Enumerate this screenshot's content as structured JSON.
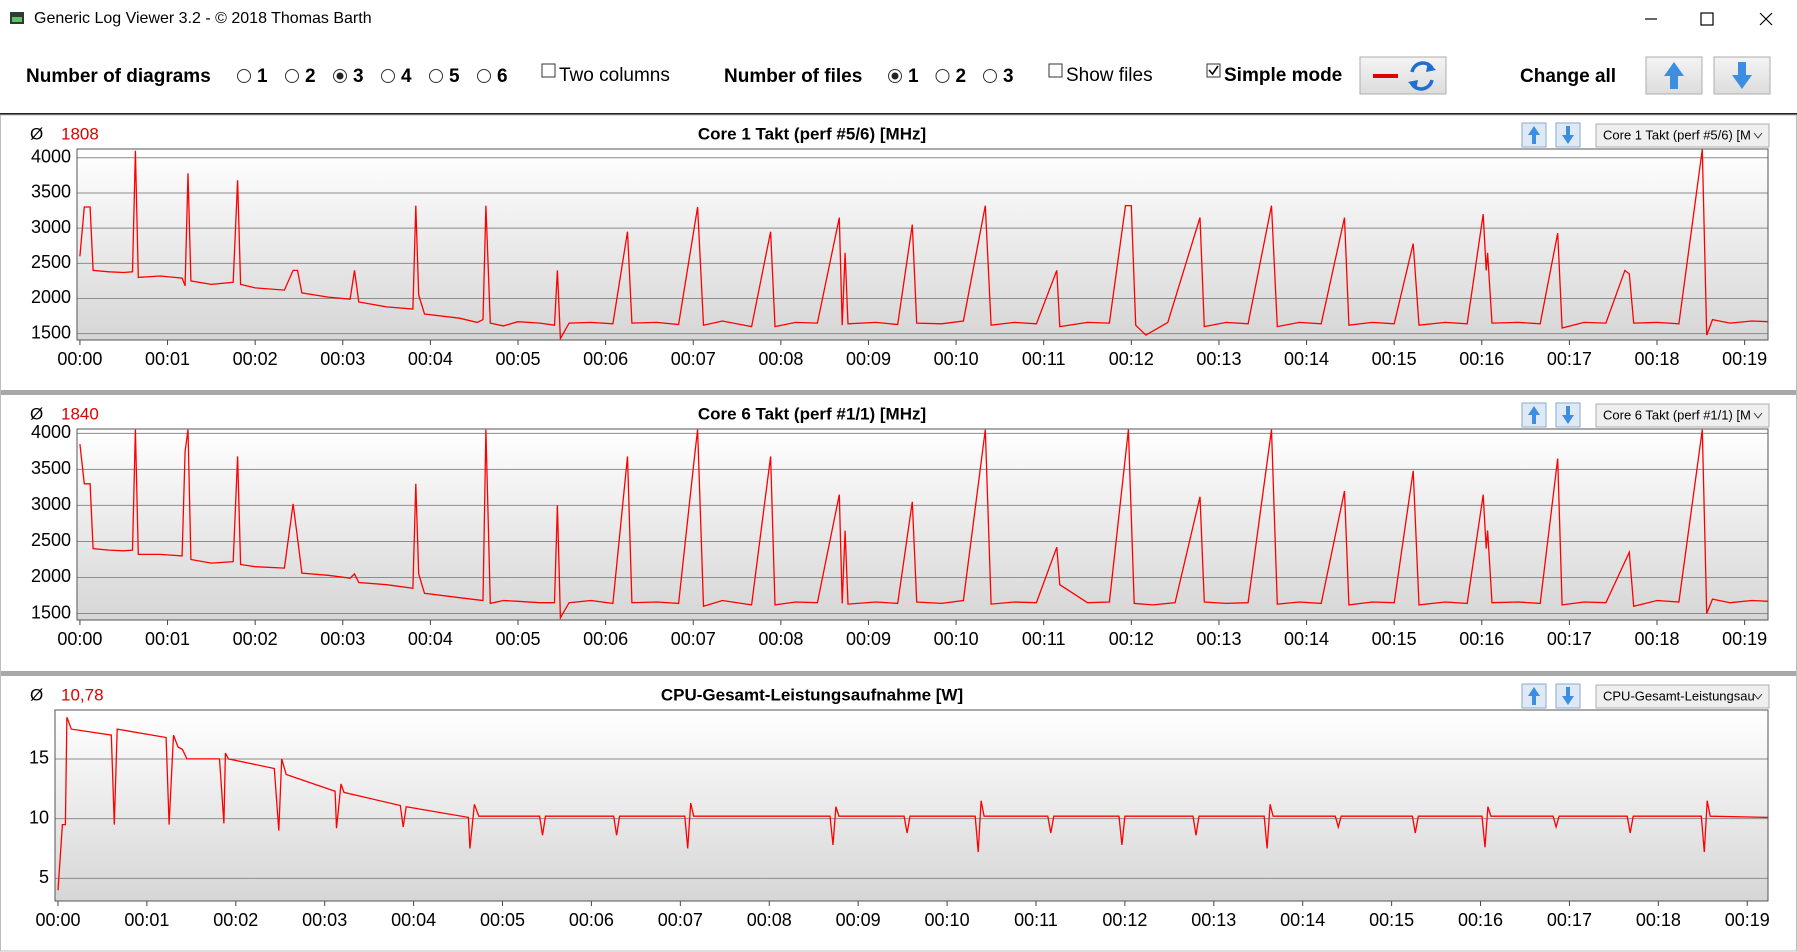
{
  "window": {
    "title": "Generic Log Viewer 3.2 - © 2018 Thomas Barth"
  },
  "toolbar": {
    "diagrams": {
      "label": "Number of diagrams",
      "options": [
        {
          "label": "1",
          "checked": false
        },
        {
          "label": "2",
          "checked": false
        },
        {
          "label": "3",
          "checked": true
        },
        {
          "label": "4",
          "checked": false
        },
        {
          "label": "5",
          "checked": false
        },
        {
          "label": "6",
          "checked": false
        }
      ]
    },
    "two_columns": {
      "label": "Two columns",
      "checked": false
    },
    "files": {
      "label": "Number of files",
      "options": [
        {
          "label": "1",
          "checked": true
        },
        {
          "label": "2",
          "checked": false
        },
        {
          "label": "3",
          "checked": false
        }
      ]
    },
    "show_files": {
      "label": "Show files",
      "checked": false
    },
    "simple_mode": {
      "label": "Simple mode",
      "checked": true
    },
    "change_all": "Change all"
  },
  "chart_data": [
    {
      "type": "line",
      "avg_symbol": "Ø",
      "average": "1808",
      "title": "Core 1 Takt (perf #5/6) [MHz]",
      "selector": "Core 1 Takt (perf #5/6) [M",
      "color": "#ff0000",
      "grid": true,
      "xlim": [
        -2,
        1156
      ],
      "ylim": [
        1410,
        4125
      ],
      "yticks": [
        1500,
        2000,
        2500,
        3000,
        3500,
        4000
      ],
      "xticks": [
        {
          "value": 0,
          "label": "00:00"
        },
        {
          "value": 60,
          "label": "00:01"
        },
        {
          "value": 120,
          "label": "00:02"
        },
        {
          "value": 180,
          "label": "00:03"
        },
        {
          "value": 240,
          "label": "00:04"
        },
        {
          "value": 300,
          "label": "00:05"
        },
        {
          "value": 360,
          "label": "00:06"
        },
        {
          "value": 420,
          "label": "00:07"
        },
        {
          "value": 480,
          "label": "00:08"
        },
        {
          "value": 540,
          "label": "00:09"
        },
        {
          "value": 600,
          "label": "00:10"
        },
        {
          "value": 660,
          "label": "00:11"
        },
        {
          "value": 720,
          "label": "00:12"
        },
        {
          "value": 780,
          "label": "00:13"
        },
        {
          "value": 840,
          "label": "00:14"
        },
        {
          "value": 900,
          "label": "00:15"
        },
        {
          "value": 960,
          "label": "00:16"
        },
        {
          "value": 1020,
          "label": "00:17"
        },
        {
          "value": 1080,
          "label": "00:18"
        },
        {
          "value": 1140,
          "label": "00:19"
        }
      ],
      "x": [
        0,
        3,
        7,
        9,
        20,
        30,
        36,
        38,
        40,
        55,
        70,
        72,
        74,
        76,
        90,
        105,
        108,
        110,
        120,
        140,
        146,
        149,
        152,
        170,
        185,
        188,
        191,
        210,
        228,
        230,
        232,
        236,
        260,
        272,
        276,
        278,
        281,
        290,
        300,
        315,
        325,
        327,
        329,
        335,
        350,
        365,
        375,
        378,
        395,
        410,
        423,
        427,
        440,
        460,
        473,
        476,
        490,
        505,
        520,
        522,
        524,
        526,
        545,
        560,
        570,
        573,
        590,
        605,
        620,
        624,
        640,
        655,
        669,
        671,
        690,
        705,
        716,
        720,
        723,
        730,
        745,
        767,
        770,
        785,
        800,
        816,
        820,
        835,
        850,
        866,
        869,
        885,
        900,
        913,
        917,
        935,
        950,
        961,
        963,
        964,
        967,
        985,
        1000,
        1012,
        1015,
        1030,
        1045,
        1058,
        1061,
        1064,
        1080,
        1095,
        1111,
        1114,
        1118,
        1130,
        1145,
        1156
      ],
      "values": [
        2600,
        3300,
        3300,
        2400,
        2380,
        2370,
        2380,
        4100,
        2300,
        2320,
        2290,
        2180,
        3780,
        2250,
        2200,
        2230,
        3680,
        2200,
        2150,
        2120,
        2400,
        2400,
        2080,
        2020,
        1990,
        2400,
        1950,
        1880,
        1850,
        3320,
        2050,
        1780,
        1720,
        1660,
        1700,
        3320,
        1650,
        1610,
        1670,
        1650,
        1620,
        2400,
        1430,
        1650,
        1660,
        1640,
        2950,
        1650,
        1660,
        1630,
        3300,
        1620,
        1680,
        1600,
        2950,
        1600,
        1660,
        1650,
        3150,
        1620,
        2650,
        1640,
        1660,
        1630,
        3050,
        1650,
        1640,
        1680,
        3320,
        1620,
        1660,
        1640,
        2400,
        1600,
        1660,
        1650,
        3320,
        3320,
        1620,
        1480,
        1660,
        3150,
        1600,
        1660,
        1640,
        3320,
        1600,
        1660,
        1640,
        3150,
        1620,
        1660,
        1640,
        2780,
        1620,
        1660,
        1640,
        3200,
        2400,
        2650,
        1650,
        1660,
        1640,
        2930,
        1580,
        1660,
        1650,
        2400,
        2350,
        1650,
        1660,
        1640,
        4120,
        1480,
        1700,
        1650,
        1680,
        1670
      ]
    },
    {
      "type": "line",
      "avg_symbol": "Ø",
      "average": "1840",
      "title": "Core 6 Takt (perf #1/1) [MHz]",
      "selector": "Core 6 Takt (perf #1/1) [M",
      "color": "#ff0000",
      "grid": true,
      "xlim": [
        -2,
        1156
      ],
      "ylim": [
        1410,
        4060
      ],
      "yticks": [
        1500,
        2000,
        2500,
        3000,
        3500,
        4000
      ],
      "xticks": [
        {
          "value": 0,
          "label": "00:00"
        },
        {
          "value": 60,
          "label": "00:01"
        },
        {
          "value": 120,
          "label": "00:02"
        },
        {
          "value": 180,
          "label": "00:03"
        },
        {
          "value": 240,
          "label": "00:04"
        },
        {
          "value": 300,
          "label": "00:05"
        },
        {
          "value": 360,
          "label": "00:06"
        },
        {
          "value": 420,
          "label": "00:07"
        },
        {
          "value": 480,
          "label": "00:08"
        },
        {
          "value": 540,
          "label": "00:09"
        },
        {
          "value": 600,
          "label": "00:10"
        },
        {
          "value": 660,
          "label": "00:11"
        },
        {
          "value": 720,
          "label": "00:12"
        },
        {
          "value": 780,
          "label": "00:13"
        },
        {
          "value": 840,
          "label": "00:14"
        },
        {
          "value": 900,
          "label": "00:15"
        },
        {
          "value": 960,
          "label": "00:16"
        },
        {
          "value": 1020,
          "label": "00:17"
        },
        {
          "value": 1080,
          "label": "00:18"
        },
        {
          "value": 1140,
          "label": "00:19"
        }
      ],
      "x": [
        0,
        3,
        7,
        9,
        20,
        30,
        36,
        38,
        40,
        55,
        70,
        72,
        74,
        76,
        90,
        105,
        108,
        110,
        120,
        140,
        146,
        149,
        152,
        170,
        185,
        188,
        191,
        210,
        228,
        230,
        232,
        236,
        260,
        272,
        276,
        278,
        281,
        290,
        300,
        315,
        325,
        327,
        329,
        335,
        350,
        365,
        375,
        378,
        395,
        410,
        421,
        423,
        427,
        440,
        460,
        473,
        476,
        490,
        505,
        520,
        522,
        524,
        526,
        545,
        560,
        570,
        573,
        590,
        605,
        620,
        624,
        640,
        655,
        669,
        671,
        690,
        705,
        718,
        722,
        735,
        750,
        767,
        770,
        785,
        800,
        816,
        820,
        835,
        850,
        866,
        869,
        885,
        900,
        913,
        917,
        935,
        950,
        961,
        963,
        964,
        967,
        985,
        1000,
        1012,
        1015,
        1030,
        1045,
        1061,
        1064,
        1080,
        1095,
        1111,
        1114,
        1118,
        1130,
        1145,
        1156
      ],
      "values": [
        3850,
        3300,
        3300,
        2400,
        2380,
        2370,
        2380,
        4050,
        2320,
        2320,
        2300,
        3750,
        4050,
        2250,
        2200,
        2220,
        3680,
        2180,
        2150,
        2130,
        3020,
        2550,
        2060,
        2030,
        1990,
        2050,
        1930,
        1900,
        1850,
        3300,
        2050,
        1780,
        1720,
        1690,
        1680,
        4050,
        1640,
        1680,
        1670,
        1650,
        1650,
        3000,
        1440,
        1650,
        1680,
        1640,
        3680,
        1650,
        1660,
        1640,
        3700,
        4050,
        1600,
        1680,
        1620,
        3680,
        1620,
        1660,
        1650,
        3150,
        1640,
        2650,
        1630,
        1660,
        1640,
        3050,
        1660,
        1640,
        1680,
        4050,
        1630,
        1660,
        1650,
        2420,
        1900,
        1650,
        1660,
        4050,
        1640,
        1620,
        1650,
        3120,
        1660,
        1640,
        1650,
        4050,
        1630,
        1660,
        1640,
        3200,
        1620,
        1660,
        1650,
        3480,
        1620,
        1660,
        1640,
        3150,
        2400,
        2650,
        1650,
        1660,
        1640,
        3650,
        1620,
        1660,
        1650,
        2350,
        1600,
        1680,
        1660,
        4050,
        1500,
        1700,
        1650,
        1680,
        1670
      ]
    },
    {
      "type": "line",
      "avg_symbol": "Ø",
      "average": "10,78",
      "title": "CPU-Gesamt-Leistungsaufnahme [W]",
      "selector": "CPU-Gesamt-Leistungsau",
      "color": "#ff0000",
      "grid": true,
      "xlim": [
        -2,
        1154
      ],
      "ylim": [
        3.1,
        19.1
      ],
      "yticks": [
        5,
        10,
        15
      ],
      "xticks": [
        {
          "value": 0,
          "label": "00:00"
        },
        {
          "value": 60,
          "label": "00:01"
        },
        {
          "value": 120,
          "label": "00:02"
        },
        {
          "value": 180,
          "label": "00:03"
        },
        {
          "value": 240,
          "label": "00:04"
        },
        {
          "value": 300,
          "label": "00:05"
        },
        {
          "value": 360,
          "label": "00:06"
        },
        {
          "value": 420,
          "label": "00:07"
        },
        {
          "value": 480,
          "label": "00:08"
        },
        {
          "value": 540,
          "label": "00:09"
        },
        {
          "value": 600,
          "label": "00:10"
        },
        {
          "value": 660,
          "label": "00:11"
        },
        {
          "value": 720,
          "label": "00:12"
        },
        {
          "value": 780,
          "label": "00:13"
        },
        {
          "value": 840,
          "label": "00:14"
        },
        {
          "value": 900,
          "label": "00:15"
        },
        {
          "value": 960,
          "label": "00:16"
        },
        {
          "value": 1020,
          "label": "00:17"
        },
        {
          "value": 1080,
          "label": "00:18"
        },
        {
          "value": 1140,
          "label": "00:19"
        }
      ],
      "x": [
        0,
        3,
        5,
        6,
        9,
        36,
        38,
        40,
        73,
        75,
        78,
        81,
        84,
        87,
        109,
        112,
        113,
        115,
        146,
        149,
        151,
        154,
        187,
        188,
        191,
        193,
        231,
        233,
        235,
        277,
        278,
        281,
        284,
        325,
        327,
        329,
        375,
        377,
        379,
        423,
        425,
        427,
        429,
        521,
        523,
        525,
        527,
        571,
        573,
        575,
        619,
        621,
        623,
        625,
        668,
        670,
        672,
        716,
        718,
        720,
        766,
        768,
        770,
        814,
        816,
        818,
        820,
        862,
        864,
        866,
        914,
        916,
        918,
        961,
        963,
        965,
        967,
        1009,
        1011,
        1013,
        1059,
        1061,
        1063,
        1109,
        1111,
        1113,
        1115,
        1155
      ],
      "values": [
        4,
        9.5,
        9.5,
        18.5,
        17.5,
        17,
        9.5,
        17.5,
        16.8,
        9.5,
        17,
        16,
        15.8,
        15,
        15,
        9.6,
        15.5,
        15,
        14.2,
        9,
        15,
        13.7,
        12.3,
        9.2,
        12.9,
        12.2,
        11.1,
        9.3,
        11,
        10.1,
        7.5,
        11.2,
        10.2,
        10.2,
        8.6,
        10.2,
        10.2,
        8.6,
        10.2,
        10.2,
        7.5,
        11.3,
        10.2,
        10.2,
        7.8,
        11,
        10.2,
        10.2,
        8.8,
        10.2,
        10.2,
        7.2,
        11.5,
        10.2,
        10.2,
        8.8,
        10.2,
        10.2,
        7.8,
        10.2,
        10.2,
        8.6,
        10.2,
        10.2,
        7.5,
        11.2,
        10.2,
        10.2,
        9.3,
        10.2,
        10.2,
        8.8,
        10.2,
        10.2,
        7.6,
        11,
        10.2,
        10.2,
        9.3,
        10.2,
        10.2,
        8.8,
        10.2,
        10.2,
        7.2,
        11.5,
        10.2,
        10.1
      ]
    }
  ]
}
